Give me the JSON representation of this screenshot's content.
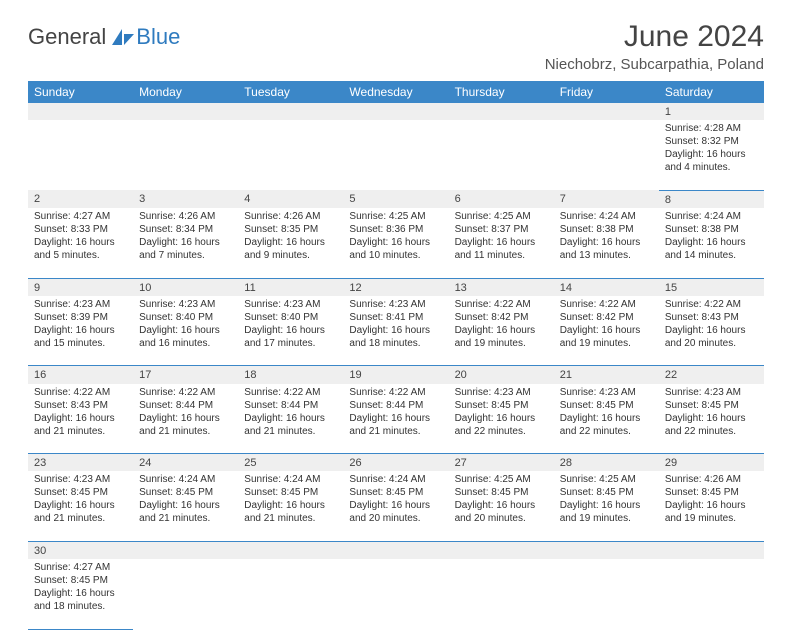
{
  "logo": {
    "text1": "General",
    "text2": "Blue"
  },
  "title": "June 2024",
  "location": "Niechobrz, Subcarpathia, Poland",
  "colors": {
    "headerBg": "#3b87c8",
    "headerText": "#ffffff",
    "dayNumBg": "#efefef",
    "borderColor": "#3b87c8",
    "textColor": "#333333",
    "logoBlue": "#2f7bbf"
  },
  "weekdays": [
    "Sunday",
    "Monday",
    "Tuesday",
    "Wednesday",
    "Thursday",
    "Friday",
    "Saturday"
  ],
  "weeks": [
    [
      null,
      null,
      null,
      null,
      null,
      null,
      {
        "n": "1",
        "sr": "4:28 AM",
        "ss": "8:32 PM",
        "dl": "16 hours and 4 minutes."
      }
    ],
    [
      {
        "n": "2",
        "sr": "4:27 AM",
        "ss": "8:33 PM",
        "dl": "16 hours and 5 minutes."
      },
      {
        "n": "3",
        "sr": "4:26 AM",
        "ss": "8:34 PM",
        "dl": "16 hours and 7 minutes."
      },
      {
        "n": "4",
        "sr": "4:26 AM",
        "ss": "8:35 PM",
        "dl": "16 hours and 9 minutes."
      },
      {
        "n": "5",
        "sr": "4:25 AM",
        "ss": "8:36 PM",
        "dl": "16 hours and 10 minutes."
      },
      {
        "n": "6",
        "sr": "4:25 AM",
        "ss": "8:37 PM",
        "dl": "16 hours and 11 minutes."
      },
      {
        "n": "7",
        "sr": "4:24 AM",
        "ss": "8:38 PM",
        "dl": "16 hours and 13 minutes."
      },
      {
        "n": "8",
        "sr": "4:24 AM",
        "ss": "8:38 PM",
        "dl": "16 hours and 14 minutes."
      }
    ],
    [
      {
        "n": "9",
        "sr": "4:23 AM",
        "ss": "8:39 PM",
        "dl": "16 hours and 15 minutes."
      },
      {
        "n": "10",
        "sr": "4:23 AM",
        "ss": "8:40 PM",
        "dl": "16 hours and 16 minutes."
      },
      {
        "n": "11",
        "sr": "4:23 AM",
        "ss": "8:40 PM",
        "dl": "16 hours and 17 minutes."
      },
      {
        "n": "12",
        "sr": "4:23 AM",
        "ss": "8:41 PM",
        "dl": "16 hours and 18 minutes."
      },
      {
        "n": "13",
        "sr": "4:22 AM",
        "ss": "8:42 PM",
        "dl": "16 hours and 19 minutes."
      },
      {
        "n": "14",
        "sr": "4:22 AM",
        "ss": "8:42 PM",
        "dl": "16 hours and 19 minutes."
      },
      {
        "n": "15",
        "sr": "4:22 AM",
        "ss": "8:43 PM",
        "dl": "16 hours and 20 minutes."
      }
    ],
    [
      {
        "n": "16",
        "sr": "4:22 AM",
        "ss": "8:43 PM",
        "dl": "16 hours and 21 minutes."
      },
      {
        "n": "17",
        "sr": "4:22 AM",
        "ss": "8:44 PM",
        "dl": "16 hours and 21 minutes."
      },
      {
        "n": "18",
        "sr": "4:22 AM",
        "ss": "8:44 PM",
        "dl": "16 hours and 21 minutes."
      },
      {
        "n": "19",
        "sr": "4:22 AM",
        "ss": "8:44 PM",
        "dl": "16 hours and 21 minutes."
      },
      {
        "n": "20",
        "sr": "4:23 AM",
        "ss": "8:45 PM",
        "dl": "16 hours and 22 minutes."
      },
      {
        "n": "21",
        "sr": "4:23 AM",
        "ss": "8:45 PM",
        "dl": "16 hours and 22 minutes."
      },
      {
        "n": "22",
        "sr": "4:23 AM",
        "ss": "8:45 PM",
        "dl": "16 hours and 22 minutes."
      }
    ],
    [
      {
        "n": "23",
        "sr": "4:23 AM",
        "ss": "8:45 PM",
        "dl": "16 hours and 21 minutes."
      },
      {
        "n": "24",
        "sr": "4:24 AM",
        "ss": "8:45 PM",
        "dl": "16 hours and 21 minutes."
      },
      {
        "n": "25",
        "sr": "4:24 AM",
        "ss": "8:45 PM",
        "dl": "16 hours and 21 minutes."
      },
      {
        "n": "26",
        "sr": "4:24 AM",
        "ss": "8:45 PM",
        "dl": "16 hours and 20 minutes."
      },
      {
        "n": "27",
        "sr": "4:25 AM",
        "ss": "8:45 PM",
        "dl": "16 hours and 20 minutes."
      },
      {
        "n": "28",
        "sr": "4:25 AM",
        "ss": "8:45 PM",
        "dl": "16 hours and 19 minutes."
      },
      {
        "n": "29",
        "sr": "4:26 AM",
        "ss": "8:45 PM",
        "dl": "16 hours and 19 minutes."
      }
    ],
    [
      {
        "n": "30",
        "sr": "4:27 AM",
        "ss": "8:45 PM",
        "dl": "16 hours and 18 minutes."
      },
      null,
      null,
      null,
      null,
      null,
      null
    ]
  ],
  "labels": {
    "sunrise": "Sunrise:",
    "sunset": "Sunset:",
    "daylight": "Daylight:"
  }
}
